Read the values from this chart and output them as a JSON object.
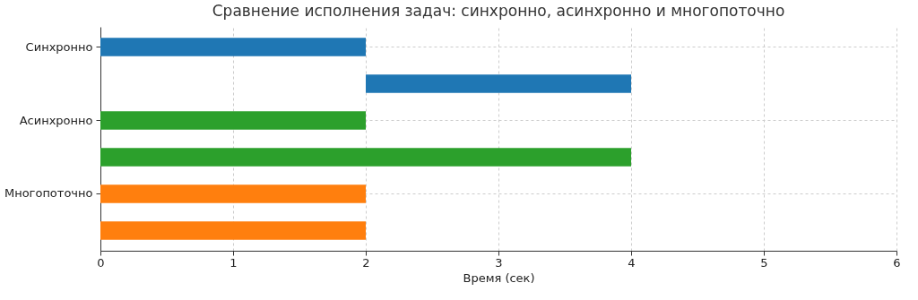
{
  "chart_data": {
    "type": "bar",
    "orientation": "horizontal",
    "title": "Сравнение исполнения задач: синхронно, асинхронно и многопоточно",
    "xlabel": "Время (сек)",
    "categories": [
      "Синхронно",
      null,
      "Асинхронно",
      null,
      "Многопоточно",
      null
    ],
    "base": [
      0,
      2,
      0,
      0,
      0,
      0
    ],
    "values": [
      2,
      2,
      2,
      4,
      2,
      2
    ],
    "colors": [
      "#1f77b4",
      "#1f77b4",
      "#2ca02c",
      "#2ca02c",
      "#ff7f0e",
      "#ff7f0e"
    ],
    "xlim": [
      0,
      6
    ],
    "xticks": [
      0,
      1,
      2,
      3,
      4,
      5,
      6
    ],
    "grid": true
  }
}
